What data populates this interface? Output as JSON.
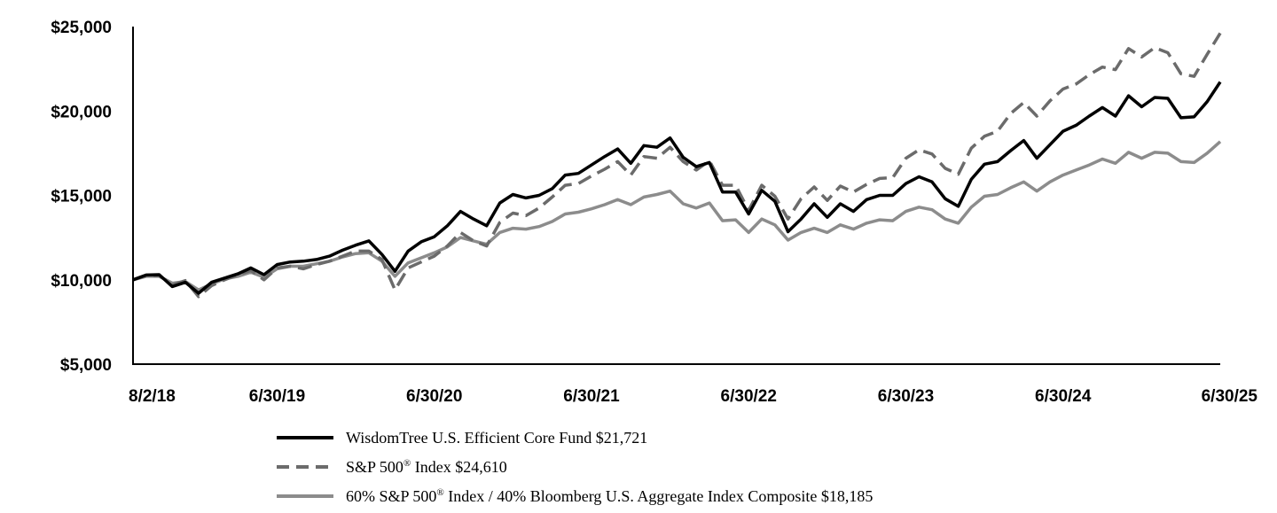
{
  "chart_data": {
    "type": "line",
    "title": "",
    "xlabel": "",
    "ylabel": "",
    "ylim": [
      5000,
      25000
    ],
    "yticks": [
      5000,
      10000,
      15000,
      20000,
      25000
    ],
    "ytick_labels": [
      "$5,000",
      "$10,000",
      "$15,000",
      "$20,000",
      "$25,000"
    ],
    "xtick_labels": [
      "8/2/18",
      "6/30/19",
      "6/30/20",
      "6/30/21",
      "6/30/22",
      "6/30/23",
      "6/30/24",
      "6/30/25"
    ],
    "x_range": [
      0,
      83
    ],
    "xtick_positions": [
      0,
      11,
      23,
      35,
      47,
      59,
      71,
      83
    ],
    "series": [
      {
        "name": "WisdomTree U.S. Efficient Core Fund",
        "ending_value": "$21,721",
        "color": "#000000",
        "dash": "solid",
        "values": [
          10000,
          10280,
          10300,
          9600,
          9850,
          9200,
          9850,
          10100,
          10350,
          10700,
          10300,
          10900,
          11050,
          11100,
          11200,
          11400,
          11750,
          12050,
          12300,
          11500,
          10500,
          11700,
          12250,
          12550,
          13200,
          14050,
          13600,
          13200,
          14550,
          15050,
          14850,
          15000,
          15400,
          16200,
          16300,
          16800,
          17300,
          17750,
          16900,
          17950,
          17850,
          18400,
          17250,
          16700,
          16950,
          15200,
          15200,
          13900,
          15300,
          14650,
          12850,
          13600,
          14500,
          13700,
          14500,
          14050,
          14750,
          15000,
          15000,
          15700,
          16100,
          15800,
          14800,
          14350,
          15950,
          16850,
          17000,
          17650,
          18250,
          17200,
          18000,
          18800,
          19150,
          19700,
          20200,
          19700,
          20900,
          20250,
          20800,
          20750,
          19600,
          19650,
          20550,
          21721
        ]
      },
      {
        "name": "S&P 500® Index",
        "ending_value": "$24,610",
        "color": "#6b6b6b",
        "dash": "dashed",
        "values": [
          10000,
          10250,
          10250,
          9700,
          9950,
          9000,
          9650,
          10000,
          10300,
          10550,
          10000,
          10700,
          10800,
          10650,
          10900,
          11100,
          11400,
          11700,
          11700,
          11200,
          9400,
          10700,
          11050,
          11400,
          12000,
          12800,
          12300,
          12000,
          13400,
          13950,
          13800,
          14250,
          14900,
          15600,
          15700,
          16150,
          16550,
          17000,
          16200,
          17300,
          17200,
          17850,
          17000,
          16500,
          17050,
          15600,
          15600,
          14100,
          15600,
          14950,
          13600,
          14800,
          15500,
          14700,
          15550,
          15200,
          15650,
          16000,
          16050,
          17200,
          17700,
          17450,
          16600,
          16250,
          17800,
          18500,
          18800,
          19850,
          20500,
          19700,
          20600,
          21300,
          21600,
          22150,
          22600,
          22450,
          23700,
          23200,
          23750,
          23450,
          22200,
          22050,
          23350,
          24610
        ]
      },
      {
        "name": "60% S&P 500® Index / 40% Bloomberg U.S. Aggregate Index Composite",
        "ending_value": "$18,185",
        "color": "#8c8c8c",
        "dash": "solid",
        "values": [
          10000,
          10200,
          10200,
          9800,
          9900,
          9400,
          9750,
          10050,
          10200,
          10450,
          10150,
          10650,
          10800,
          10800,
          10950,
          11100,
          11350,
          11550,
          11600,
          11100,
          10200,
          11000,
          11300,
          11600,
          11950,
          12500,
          12300,
          12100,
          12800,
          13050,
          13000,
          13150,
          13450,
          13900,
          14000,
          14200,
          14450,
          14750,
          14450,
          14900,
          15050,
          15250,
          14500,
          14250,
          14550,
          13500,
          13550,
          12800,
          13600,
          13250,
          12350,
          12800,
          13050,
          12800,
          13250,
          13000,
          13350,
          13550,
          13500,
          14050,
          14300,
          14150,
          13600,
          13350,
          14300,
          14950,
          15050,
          15450,
          15800,
          15250,
          15800,
          16200,
          16500,
          16800,
          17150,
          16900,
          17550,
          17200,
          17550,
          17500,
          17000,
          16950,
          17500,
          18185
        ]
      }
    ]
  },
  "legend": {
    "items": [
      {
        "text": "WisdomTree U.S. Efficient Core Fund $21,721"
      },
      {
        "text_pre": "S&P 500",
        "sup": "®",
        "text_post": " Index $24,610"
      },
      {
        "text_pre": "60% S&P 500",
        "sup": "®",
        "text_post": " Index / 40% Bloomberg U.S. Aggregate Index Composite $18,185"
      }
    ]
  }
}
